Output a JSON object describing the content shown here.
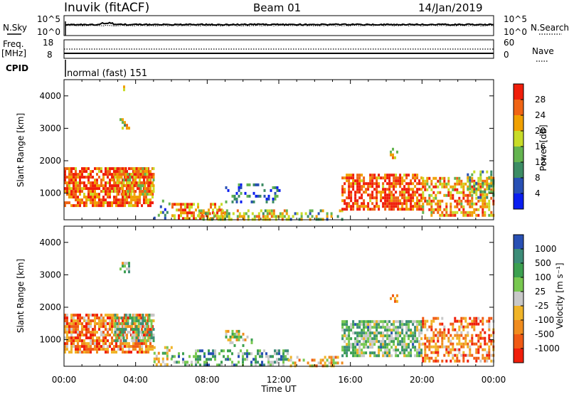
{
  "header": {
    "station": "Inuvik (fitACF)",
    "beam": "Beam 01",
    "date": "14/Jan/2019"
  },
  "top_panels": {
    "nsky_label": "N.Sky",
    "nsearch_label": "N.Search",
    "noise_ticks_left": [
      "10^5",
      "10^0"
    ],
    "noise_ticks_right": [
      "10^5",
      "10^0"
    ],
    "freq_label": "Freq.",
    "freq_unit": "[MHz]",
    "freq_ticks": [
      "18",
      "8"
    ],
    "nave_label": "Nave",
    "nave_ticks": [
      "60",
      "0"
    ],
    "cpid_label": "CPID",
    "cpid_text": "normal (fast) 151"
  },
  "colors": {
    "power_scale": [
      "#0a1ef0",
      "#2850b4",
      "#3c8c64",
      "#64b450",
      "#c8dc28",
      "#f0a000",
      "#f06414",
      "#f01e0a"
    ],
    "velocity_scale": [
      "#f01e0a",
      "#f05a14",
      "#f08c1e",
      "#f0b428",
      "#c8c8c8",
      "#78c850",
      "#3ca050",
      "#3c8c78",
      "#2850b4"
    ]
  },
  "chart_data": [
    {
      "type": "heatmap",
      "name": "power",
      "ylabel": "Slant Range [km]",
      "xlabel": "",
      "x_ticks": [
        "00:00",
        "04:00",
        "08:00",
        "12:00",
        "16:00",
        "20:00",
        "00:00"
      ],
      "y_ticks": [
        "1000",
        "2000",
        "3000",
        "4000"
      ],
      "ylim": [
        180,
        4500
      ],
      "xlim_hours": [
        0,
        24
      ],
      "colorbar_label": "Power [dB]",
      "colorbar_ticks": [
        "4",
        "8",
        "12",
        "16",
        "20",
        "24",
        "28"
      ],
      "colorbar_range": [
        0,
        32
      ],
      "regions": [
        {
          "t": [
            0,
            5.0
          ],
          "r": [
            600,
            1800
          ],
          "level": 0.85,
          "density": 0.75
        },
        {
          "t": [
            2.8,
            5.0
          ],
          "r": [
            1000,
            1800
          ],
          "level": 0.7,
          "density": 0.6
        },
        {
          "t": [
            3.1,
            3.6
          ],
          "r": [
            3000,
            3400
          ],
          "level": 0.55,
          "density": 0.35
        },
        {
          "t": [
            3.3,
            3.7
          ],
          "r": [
            4150,
            4320
          ],
          "level": 0.5,
          "density": 0.3
        },
        {
          "t": [
            5.0,
            6.0
          ],
          "r": [
            200,
            800
          ],
          "level": 0.35,
          "density": 0.3
        },
        {
          "t": [
            6.0,
            9.0
          ],
          "r": [
            250,
            700
          ],
          "level": 0.75,
          "density": 0.45
        },
        {
          "t": [
            7.5,
            12.5
          ],
          "r": [
            200,
            500
          ],
          "level": 0.6,
          "density": 0.55
        },
        {
          "t": [
            9.0,
            12.0
          ],
          "r": [
            700,
            1300
          ],
          "level": 0.25,
          "density": 0.3
        },
        {
          "t": [
            12.5,
            15.5
          ],
          "r": [
            200,
            500
          ],
          "level": 0.45,
          "density": 0.35
        },
        {
          "t": [
            15.5,
            20.0
          ],
          "r": [
            500,
            1600
          ],
          "level": 0.85,
          "density": 0.7
        },
        {
          "t": [
            18.2,
            18.6
          ],
          "r": [
            2100,
            2400
          ],
          "level": 0.6,
          "density": 0.35
        },
        {
          "t": [
            20.0,
            24.0
          ],
          "r": [
            350,
            1500
          ],
          "level": 0.7,
          "density": 0.55
        },
        {
          "t": [
            22.5,
            24.0
          ],
          "r": [
            800,
            1700
          ],
          "level": 0.45,
          "density": 0.35
        }
      ]
    },
    {
      "type": "heatmap",
      "name": "velocity",
      "ylabel": "Slant Range [km]",
      "xlabel": "Time UT",
      "x_ticks": [
        "00:00",
        "04:00",
        "08:00",
        "12:00",
        "16:00",
        "20:00",
        "00:00"
      ],
      "y_ticks": [
        "1000",
        "2000",
        "3000",
        "4000"
      ],
      "ylim": [
        180,
        4500
      ],
      "xlim_hours": [
        0,
        24
      ],
      "colorbar_label": "Velocity [m s⁻¹]",
      "colorbar_ticks": [
        "1000",
        "500",
        "100",
        "25",
        "-25",
        "-100",
        "-500",
        "-1000"
      ],
      "colorbar_range": [
        -1000,
        1000
      ],
      "regions": [
        {
          "t": [
            0,
            5.0
          ],
          "r": [
            600,
            1800
          ],
          "level": 0.25,
          "density": 0.75
        },
        {
          "t": [
            2.8,
            5.0
          ],
          "r": [
            1000,
            1800
          ],
          "level": 0.65,
          "density": 0.6
        },
        {
          "t": [
            3.1,
            3.6
          ],
          "r": [
            3000,
            3400
          ],
          "level": 0.55,
          "density": 0.35
        },
        {
          "t": [
            5.0,
            6.0
          ],
          "r": [
            200,
            800
          ],
          "level": 0.5,
          "density": 0.3
        },
        {
          "t": [
            6.0,
            12.5
          ],
          "r": [
            200,
            700
          ],
          "level": 0.7,
          "density": 0.45
        },
        {
          "t": [
            9.0,
            10.5
          ],
          "r": [
            800,
            1300
          ],
          "level": 0.5,
          "density": 0.35
        },
        {
          "t": [
            12.5,
            15.5
          ],
          "r": [
            200,
            500
          ],
          "level": 0.4,
          "density": 0.35
        },
        {
          "t": [
            15.5,
            20.0
          ],
          "r": [
            500,
            1600
          ],
          "level": 0.65,
          "density": 0.7
        },
        {
          "t": [
            18.2,
            18.6
          ],
          "r": [
            2100,
            2400
          ],
          "level": 0.3,
          "density": 0.35
        },
        {
          "t": [
            20.0,
            24.0
          ],
          "r": [
            350,
            1700
          ],
          "level": 0.25,
          "density": 0.55
        }
      ]
    }
  ]
}
